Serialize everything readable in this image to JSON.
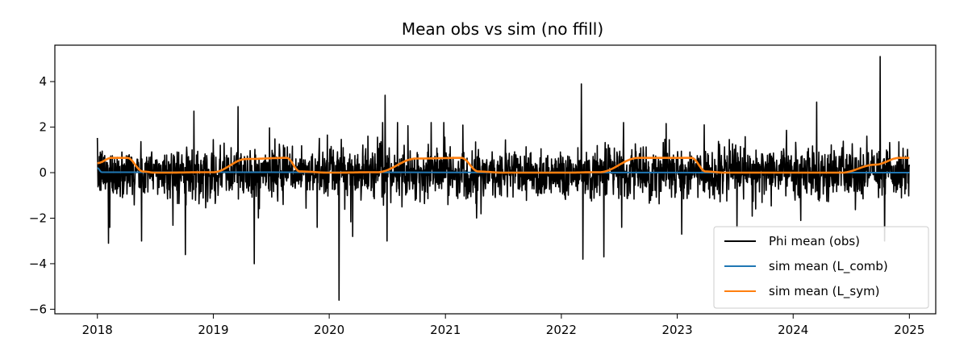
{
  "chart_data": {
    "type": "line",
    "title": "Mean obs vs sim (no ffill)",
    "xlabel": "",
    "ylabel": "",
    "x_range": [
      "2018-01-01",
      "2025-01-01"
    ],
    "xlim": [
      "2017-08-20",
      "2025-03-25"
    ],
    "ylim": [
      -6.2,
      5.6
    ],
    "x_ticks": [
      "2018",
      "2019",
      "2020",
      "2021",
      "2022",
      "2023",
      "2024",
      "2025"
    ],
    "y_ticks": [
      -6,
      -4,
      -2,
      0,
      2,
      4
    ],
    "y_tick_labels": [
      "−6",
      "−4",
      "−2",
      "0",
      "2",
      "4"
    ],
    "grid": false,
    "legend_position": "lower-right",
    "series": [
      {
        "name": "Phi mean (obs)",
        "color": "#000000",
        "kind": "noisy daily",
        "notable_points": [
          {
            "x": "2018-02-05",
            "y": -3.1
          },
          {
            "x": "2018-05-20",
            "y": -3.0
          },
          {
            "x": "2018-10-05",
            "y": -3.6
          },
          {
            "x": "2018-11-01",
            "y": 2.7
          },
          {
            "x": "2019-03-20",
            "y": 2.9
          },
          {
            "x": "2019-05-10",
            "y": -4.0
          },
          {
            "x": "2020-02-01",
            "y": -5.6
          },
          {
            "x": "2020-03-15",
            "y": -2.8
          },
          {
            "x": "2020-06-25",
            "y": 3.4
          },
          {
            "x": "2020-07-01",
            "y": -3.0
          },
          {
            "x": "2022-03-05",
            "y": 3.9
          },
          {
            "x": "2022-03-10",
            "y": -3.8
          },
          {
            "x": "2022-05-15",
            "y": -3.7
          },
          {
            "x": "2023-01-15",
            "y": -2.7
          },
          {
            "x": "2024-01-25",
            "y": -2.1
          },
          {
            "x": "2024-03-15",
            "y": 3.1
          },
          {
            "x": "2024-10-01",
            "y": 5.1
          },
          {
            "x": "2024-10-15",
            "y": -3.0
          }
        ]
      },
      {
        "name": "sim mean (L_comb)",
        "color": "#1f77b4",
        "points": [
          {
            "x": "2018-01-01",
            "y": 0.2
          },
          {
            "x": "2018-01-15",
            "y": 0.02
          },
          {
            "x": "2025-01-01",
            "y": 0.0
          }
        ]
      },
      {
        "name": "sim mean (L_sym)",
        "color": "#ff7f0e",
        "points": [
          {
            "x": "2018-01-01",
            "y": 0.42
          },
          {
            "x": "2018-02-15",
            "y": 0.65
          },
          {
            "x": "2018-04-05",
            "y": 0.65
          },
          {
            "x": "2018-05-25",
            "y": 0.05
          },
          {
            "x": "2018-07-01",
            "y": 0.0
          },
          {
            "x": "2019-01-01",
            "y": 0.02
          },
          {
            "x": "2019-04-15",
            "y": 0.6
          },
          {
            "x": "2019-08-20",
            "y": 0.65
          },
          {
            "x": "2019-10-01",
            "y": 0.05
          },
          {
            "x": "2020-01-01",
            "y": 0.0
          },
          {
            "x": "2020-06-01",
            "y": 0.02
          },
          {
            "x": "2020-10-01",
            "y": 0.62
          },
          {
            "x": "2021-02-20",
            "y": 0.65
          },
          {
            "x": "2021-04-15",
            "y": 0.05
          },
          {
            "x": "2021-07-01",
            "y": 0.0
          },
          {
            "x": "2022-01-01",
            "y": 0.0
          },
          {
            "x": "2022-05-01",
            "y": 0.02
          },
          {
            "x": "2022-09-01",
            "y": 0.65
          },
          {
            "x": "2023-02-15",
            "y": 0.65
          },
          {
            "x": "2023-04-01",
            "y": 0.05
          },
          {
            "x": "2023-06-01",
            "y": 0.0
          },
          {
            "x": "2024-06-01",
            "y": 0.0
          },
          {
            "x": "2024-09-15",
            "y": 0.35
          },
          {
            "x": "2024-12-01",
            "y": 0.65
          },
          {
            "x": "2025-01-01",
            "y": 0.65
          }
        ]
      }
    ]
  }
}
